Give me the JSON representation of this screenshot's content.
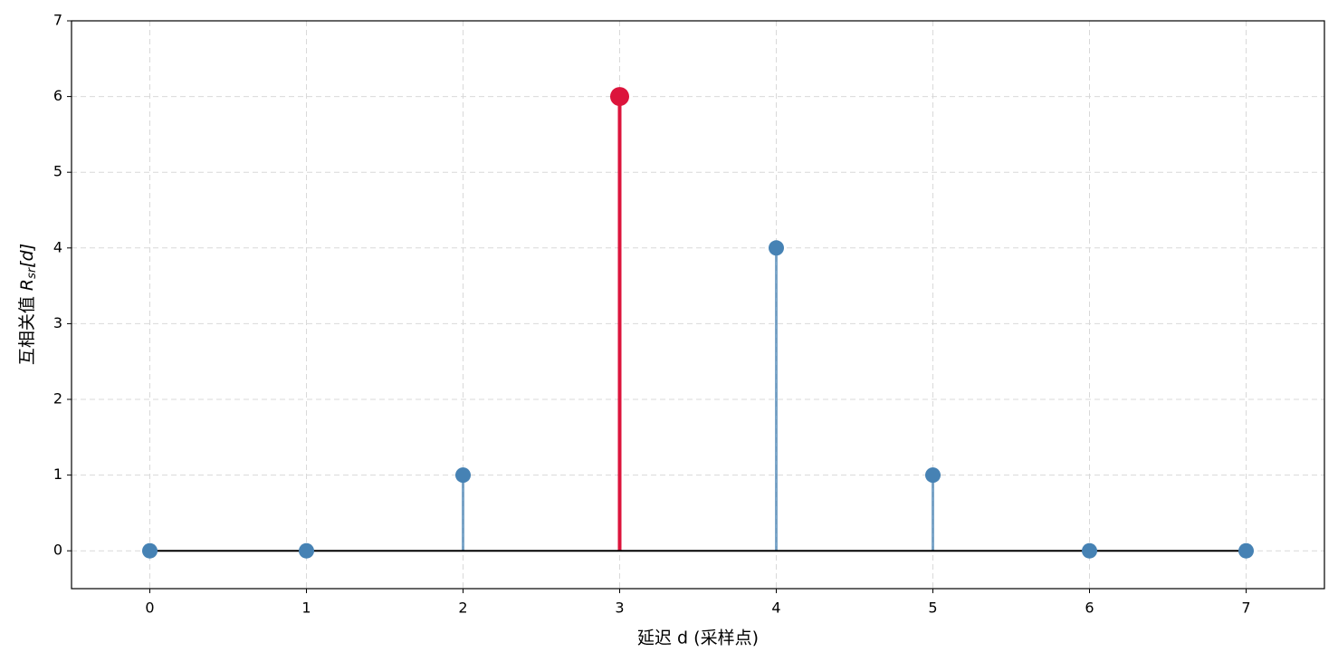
{
  "chart_data": {
    "type": "stem",
    "xlabel": "延迟 d (采样点)",
    "ylabel": {
      "text": "互相关值",
      "symbol": "R",
      "subscript": "sr",
      "suffix": "[d]"
    },
    "x": [
      0,
      1,
      2,
      3,
      4,
      5,
      6,
      7
    ],
    "values": [
      0,
      0,
      1,
      6,
      4,
      1,
      0,
      0
    ],
    "color": "#4682b4",
    "colors": [
      "#4682b4",
      "#4682b4",
      "#4682b4",
      "#dc143c",
      "#4682b4",
      "#4682b4",
      "#4682b4",
      "#4682b4"
    ],
    "baseline_color": "#000000",
    "xlim": [
      -0.5,
      7.5
    ],
    "xticks": [
      0,
      1,
      2,
      3,
      4,
      5,
      6,
      7
    ],
    "ylim": [
      -0.5,
      7
    ],
    "yticks": [
      0,
      1,
      2,
      3,
      4,
      5,
      6,
      7
    ],
    "grid": true
  }
}
